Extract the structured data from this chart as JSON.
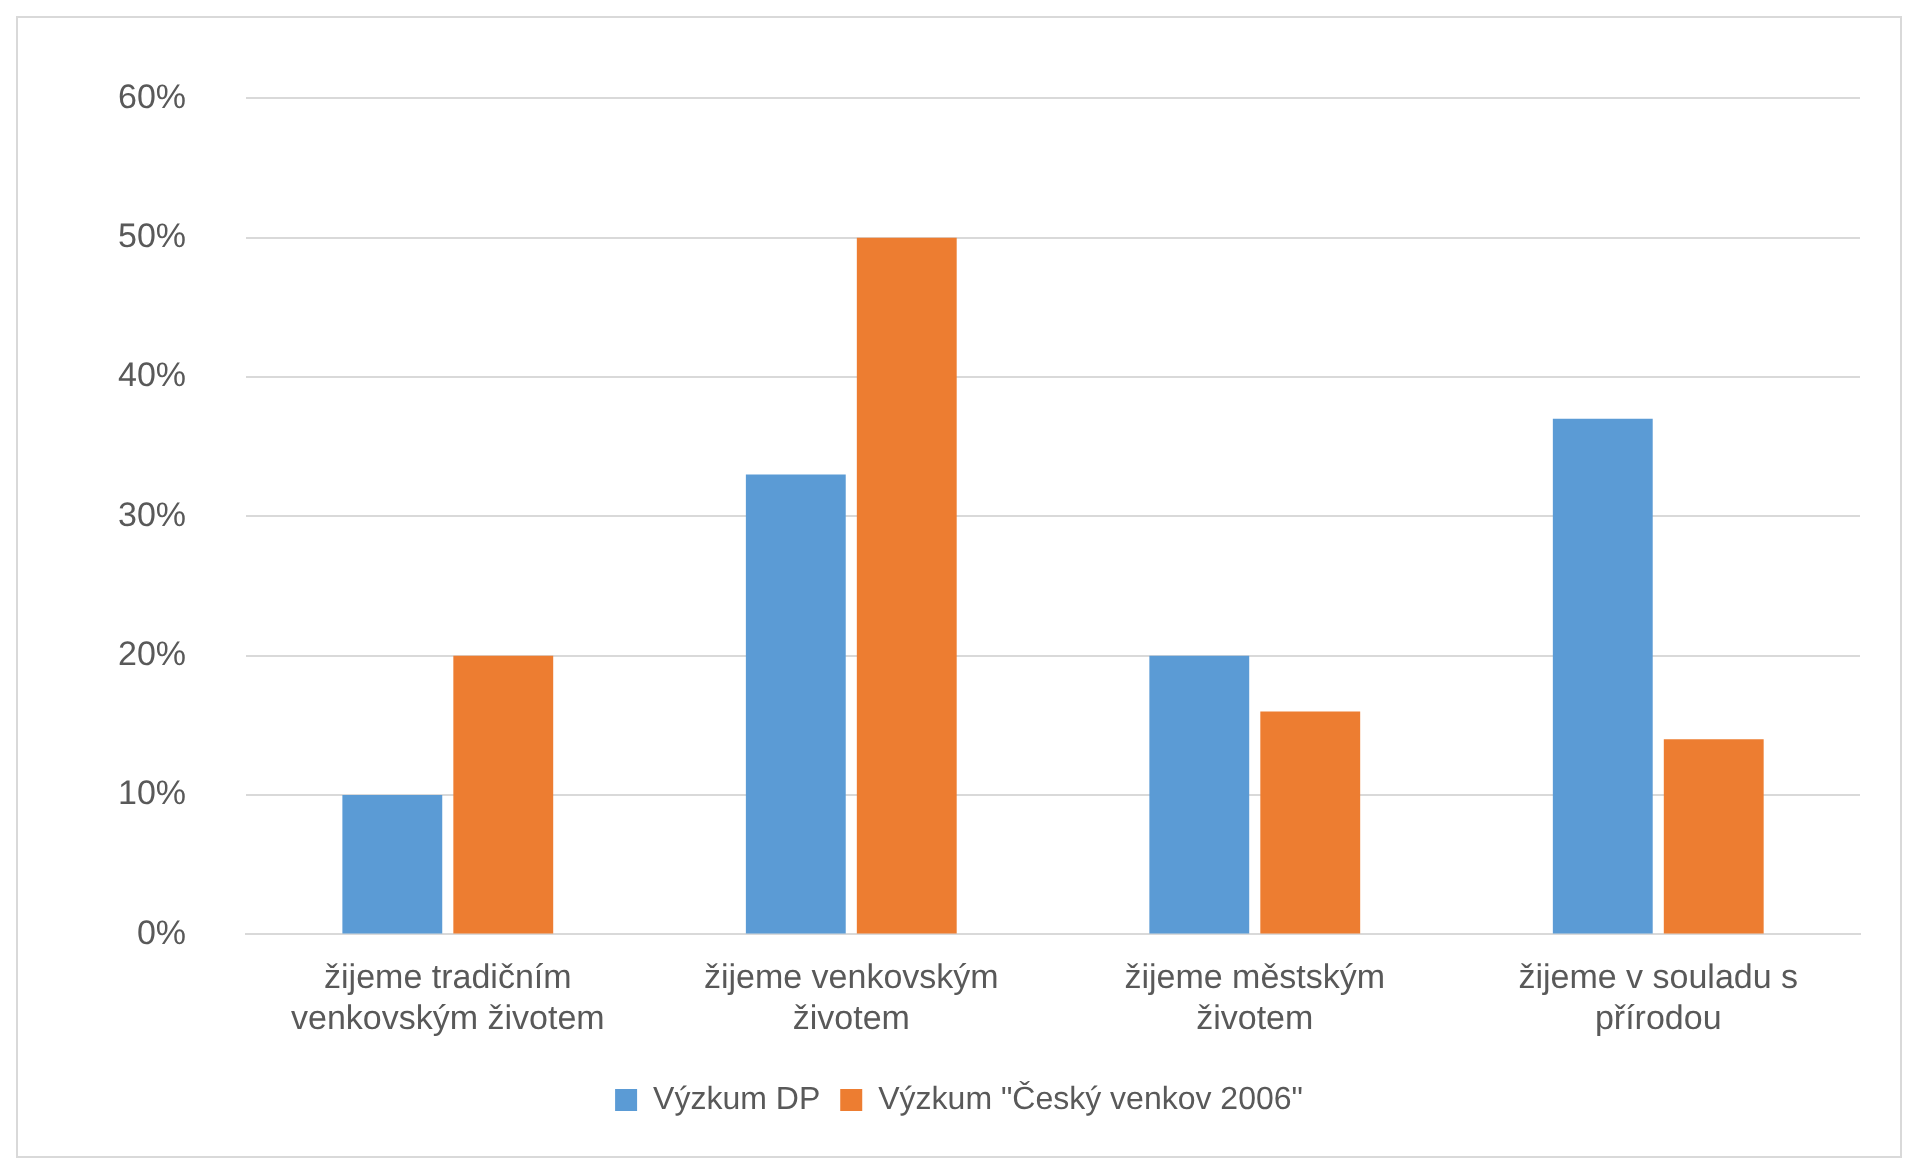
{
  "chart_data": {
    "type": "bar",
    "categories": [
      "žijeme tradičním venkovským životem",
      "žijeme venkovským životem",
      "žijeme městským životem",
      "žijeme v souladu s přírodou"
    ],
    "series": [
      {
        "name": "Výzkum DP",
        "color": "#5b9bd5",
        "values": [
          10,
          33,
          20,
          37
        ]
      },
      {
        "name": "Výzkum \"Český venkov 2006\"",
        "color": "#ed7d31",
        "values": [
          20,
          50,
          16,
          14
        ]
      }
    ],
    "ylim": [
      0,
      60
    ],
    "yticks": [
      {
        "value": 0,
        "label": "0%"
      },
      {
        "value": 10,
        "label": "10%"
      },
      {
        "value": 20,
        "label": "20%"
      },
      {
        "value": 30,
        "label": "30%"
      },
      {
        "value": 40,
        "label": "40%"
      },
      {
        "value": 50,
        "label": "50%"
      },
      {
        "value": 60,
        "label": "60%"
      }
    ],
    "grid": "y",
    "legend": "bottom"
  }
}
